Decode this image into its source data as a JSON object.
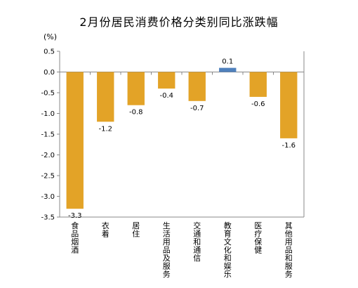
{
  "chart_data": {
    "type": "bar",
    "title": "2月份居民消费价格分类别同比涨跌幅",
    "unit_label": "(%)",
    "categories": [
      "食品烟酒",
      "衣着",
      "居住",
      "生活用品及服务",
      "交通和通信",
      "教育文化和娱乐",
      "医疗保健",
      "其他用品和服务"
    ],
    "values": [
      -3.3,
      -1.2,
      -0.8,
      -0.4,
      -0.7,
      0.1,
      -0.6,
      -1.6
    ],
    "data_labels": [
      "-3.3",
      "-1.2",
      "-0.8",
      "-0.4",
      "-0.7",
      "0.1",
      "-0.6",
      "-1.6"
    ],
    "ylim": [
      -3.5,
      0.5
    ],
    "yticks": [
      0.5,
      0.0,
      -0.5,
      -1.0,
      -1.5,
      -2.0,
      -2.5,
      -3.0,
      -3.5
    ],
    "ytick_labels": [
      "0.5",
      "0.0",
      "-0.5",
      "-1.0",
      "-1.5",
      "-2.0",
      "-2.5",
      "-3.0",
      "-3.5"
    ],
    "grid": false,
    "colors": {
      "negative": "#E3A327",
      "positive": "#4F81BD",
      "axis": "#888888"
    }
  }
}
